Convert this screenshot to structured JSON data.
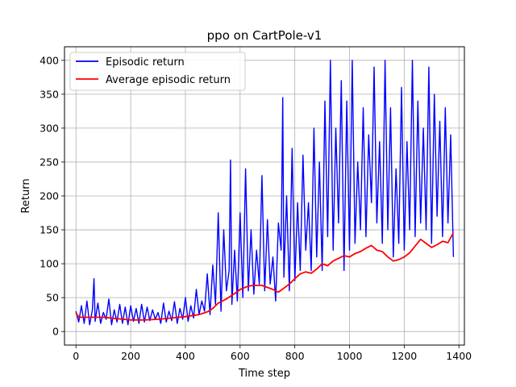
{
  "chart_data": {
    "type": "line",
    "title": "ppo on CartPole-v1",
    "xlabel": "Time step",
    "ylabel": "Return",
    "xlim": [
      -42,
      1420
    ],
    "ylim": [
      -20,
      420
    ],
    "xticks": [
      0,
      200,
      400,
      600,
      800,
      1000,
      1200,
      1400
    ],
    "yticks": [
      0,
      50,
      100,
      150,
      200,
      250,
      300,
      350,
      400
    ],
    "grid": true,
    "legend_position": "top-left",
    "series": [
      {
        "name": "Episodic return",
        "color": "#0000ff",
        "x": [
          0,
          10,
          20,
          30,
          40,
          50,
          60,
          66,
          70,
          80,
          90,
          100,
          110,
          120,
          130,
          140,
          150,
          160,
          170,
          180,
          190,
          200,
          210,
          220,
          230,
          240,
          250,
          260,
          270,
          280,
          290,
          300,
          310,
          320,
          330,
          340,
          350,
          360,
          370,
          380,
          390,
          400,
          410,
          420,
          430,
          440,
          450,
          460,
          470,
          480,
          490,
          500,
          510,
          520,
          530,
          540,
          550,
          560,
          565,
          570,
          580,
          590,
          600,
          610,
          620,
          630,
          640,
          650,
          660,
          670,
          680,
          690,
          700,
          710,
          720,
          730,
          740,
          750,
          756,
          760,
          770,
          780,
          790,
          800,
          810,
          820,
          830,
          840,
          850,
          860,
          870,
          880,
          890,
          900,
          910,
          920,
          930,
          940,
          950,
          960,
          970,
          980,
          990,
          1000,
          1010,
          1020,
          1030,
          1040,
          1050,
          1060,
          1070,
          1080,
          1090,
          1100,
          1110,
          1120,
          1130,
          1140,
          1150,
          1160,
          1170,
          1180,
          1190,
          1200,
          1210,
          1220,
          1230,
          1240,
          1250,
          1260,
          1270,
          1280,
          1290,
          1300,
          1310,
          1320,
          1330,
          1340,
          1350,
          1360,
          1370,
          1380
        ],
        "y": [
          30,
          14,
          38,
          12,
          45,
          10,
          32,
          78,
          15,
          42,
          12,
          28,
          18,
          48,
          10,
          32,
          14,
          40,
          12,
          36,
          10,
          38,
          15,
          34,
          12,
          40,
          14,
          36,
          16,
          32,
          18,
          28,
          12,
          42,
          14,
          30,
          16,
          44,
          12,
          34,
          18,
          50,
          15,
          38,
          20,
          62,
          25,
          45,
          30,
          85,
          25,
          98,
          40,
          175,
          30,
          150,
          60,
          90,
          253,
          40,
          120,
          45,
          175,
          50,
          240,
          60,
          150,
          55,
          120,
          70,
          230,
          60,
          165,
          70,
          110,
          45,
          160,
          120,
          345,
          80,
          200,
          60,
          270,
          75,
          190,
          90,
          260,
          120,
          190,
          90,
          300,
          110,
          250,
          90,
          340,
          140,
          400,
          120,
          300,
          160,
          370,
          90,
          340,
          120,
          400,
          130,
          250,
          150,
          330,
          140,
          290,
          190,
          390,
          160,
          280,
          130,
          400,
          150,
          330,
          110,
          240,
          130,
          360,
          120,
          280,
          150,
          400,
          140,
          340,
          160,
          300,
          150,
          390,
          130,
          350,
          170,
          310,
          140,
          330,
          160,
          290,
          110
        ]
      },
      {
        "name": "Average episodic return",
        "color": "#ff0000",
        "x": [
          0,
          10,
          30,
          60,
          100,
          150,
          200,
          250,
          300,
          350,
          400,
          450,
          480,
          500,
          520,
          550,
          580,
          600,
          630,
          650,
          680,
          700,
          720,
          740,
          760,
          780,
          800,
          820,
          840,
          860,
          880,
          900,
          920,
          940,
          960,
          980,
          1000,
          1020,
          1040,
          1060,
          1080,
          1100,
          1120,
          1140,
          1160,
          1180,
          1200,
          1220,
          1240,
          1260,
          1280,
          1300,
          1320,
          1340,
          1360,
          1380
        ],
        "y": [
          28,
          21,
          21,
          21,
          21,
          19,
          17,
          17,
          18,
          20,
          22,
          25,
          29,
          34,
          42,
          48,
          56,
          62,
          67,
          68,
          68,
          65,
          62,
          58,
          64,
          70,
          78,
          85,
          88,
          86,
          92,
          100,
          97,
          104,
          108,
          112,
          110,
          115,
          118,
          123,
          127,
          120,
          118,
          110,
          104,
          106,
          110,
          116,
          126,
          136,
          130,
          124,
          128,
          133,
          131,
          146
        ]
      }
    ]
  }
}
